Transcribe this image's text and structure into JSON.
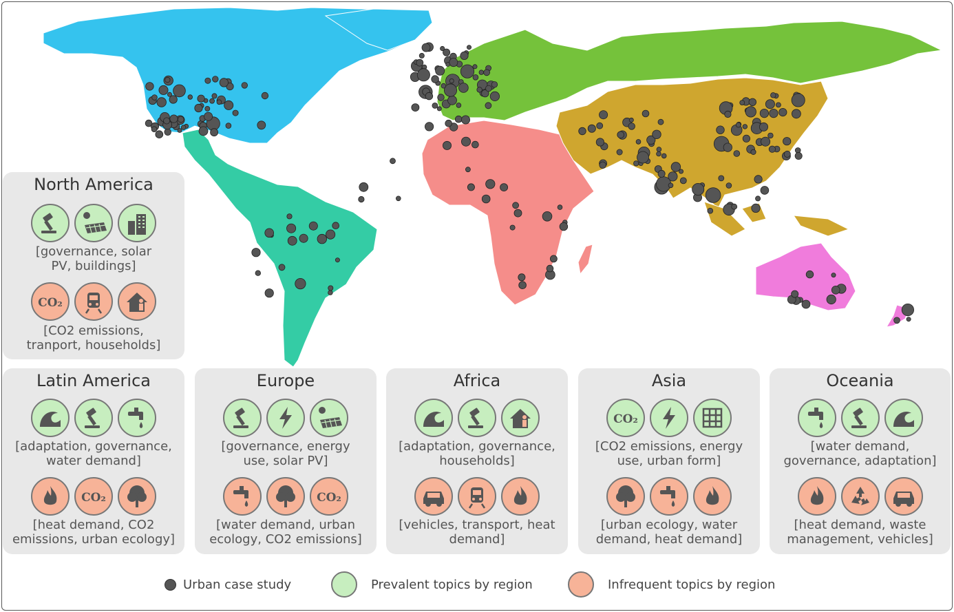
{
  "map_regions": [
    "North America",
    "Latin America",
    "Europe",
    "Africa",
    "Asia",
    "Oceania"
  ],
  "colors": {
    "north_america": "#35c3ee",
    "latin_america": "#34cca5",
    "europe": "#75c23b",
    "africa": "#f58d8a",
    "asia": "#cfa62f",
    "oceania": "#f07cdc",
    "dot": "#555555",
    "prevalent": "#c7eebf",
    "infrequent": "#f7b398"
  },
  "panels": {
    "north_america": {
      "title": "North America",
      "prevalent_icons": [
        "gavel-icon",
        "solar-panel-icon",
        "buildings-icon"
      ],
      "prevalent_l1": "[governance, solar",
      "prevalent_l2": "PV, buildings]",
      "infrequent_icons": [
        "co2-icon",
        "train-icon",
        "household-icon"
      ],
      "infrequent_l1": "[CO2 emissions,",
      "infrequent_l2": "tranport, households]"
    },
    "latin_america": {
      "title": "Latin America",
      "prevalent_icons": [
        "wave-icon",
        "gavel-icon",
        "water-tap-icon"
      ],
      "prevalent_l1": "[adaptation, governance,",
      "prevalent_l2": "water demand]",
      "infrequent_icons": [
        "flame-icon",
        "co2-icon",
        "tree-icon"
      ],
      "infrequent_l1": "[heat demand, CO2",
      "infrequent_l2": "emissions, urban ecology]"
    },
    "europe": {
      "title": "Europe",
      "prevalent_icons": [
        "gavel-icon",
        "lightning-icon",
        "solar-panel-icon"
      ],
      "prevalent_l1": "[governance, energy",
      "prevalent_l2": "use, solar PV]",
      "infrequent_icons": [
        "water-tap-icon",
        "tree-icon",
        "co2-icon"
      ],
      "infrequent_l1": "[water demand, urban",
      "infrequent_l2": "ecology, CO2 emissions]"
    },
    "africa": {
      "title": "Africa",
      "prevalent_icons": [
        "wave-icon",
        "gavel-icon",
        "household-icon"
      ],
      "prevalent_l1": "[adaptation, governance,",
      "prevalent_l2": "households]",
      "infrequent_icons": [
        "car-icon",
        "train-icon",
        "flame-icon"
      ],
      "infrequent_l1": "[vehicles, transport, heat",
      "infrequent_l2": "demand]"
    },
    "asia": {
      "title": "Asia",
      "prevalent_icons": [
        "co2-icon",
        "lightning-icon",
        "urban-grid-icon"
      ],
      "prevalent_l1": "[CO2 emissions, energy",
      "prevalent_l2": "use, urban form]",
      "infrequent_icons": [
        "tree-icon",
        "water-tap-icon",
        "flame-icon"
      ],
      "infrequent_l1": "[urban ecology, water",
      "infrequent_l2": "demand, heat demand]"
    },
    "oceania": {
      "title": "Oceania",
      "prevalent_icons": [
        "water-tap-icon",
        "gavel-icon",
        "wave-icon"
      ],
      "prevalent_l1": "[water demand,",
      "prevalent_l2": "governance, adaptation]",
      "infrequent_icons": [
        "flame-icon",
        "recycle-icon",
        "car-icon"
      ],
      "infrequent_l1": "[heat demand, waste",
      "infrequent_l2": "management, vehicles]"
    }
  },
  "legend": {
    "case_study": "Urban case study",
    "prevalent": "Prevalent topics by region",
    "infrequent": "Infrequent topics by region"
  }
}
